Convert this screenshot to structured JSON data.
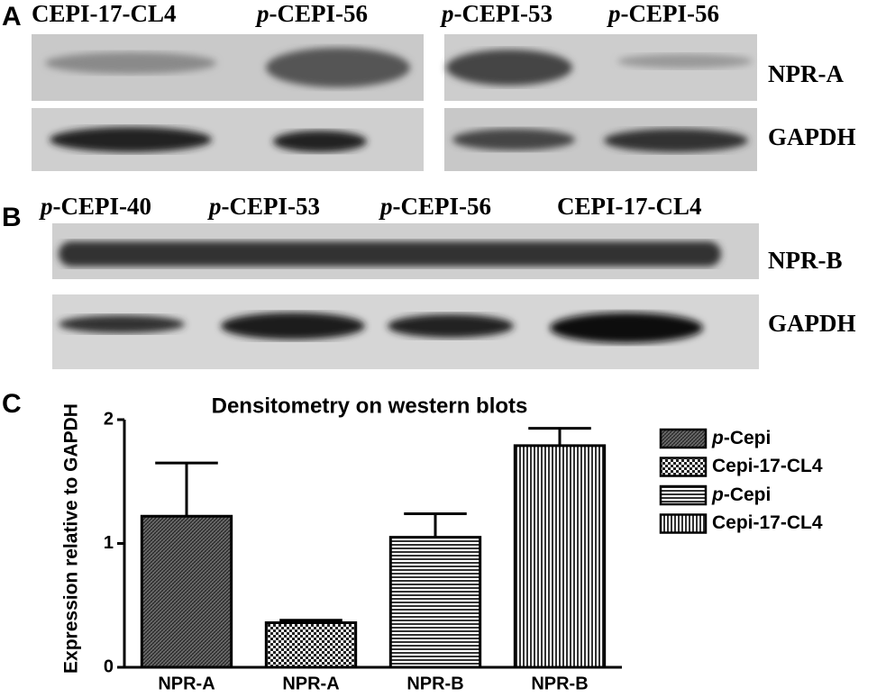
{
  "panel_labels": [
    "A",
    "B",
    "C"
  ],
  "panel_a": {
    "lanes": [
      "CEPI-17-CL4",
      "p-CEPI-56",
      "p-CEPI-53",
      "p-CEPI-56"
    ],
    "rows": [
      "NPR-A",
      "GAPDH"
    ]
  },
  "panel_b": {
    "lanes": [
      "p-CEPI-40",
      "p-CEPI-53",
      "p-CEPI-56",
      "CEPI-17-CL4"
    ],
    "rows": [
      "NPR-B",
      "GAPDH"
    ]
  },
  "chart_data": {
    "type": "bar",
    "title": "Densitometry on western blots",
    "y_label": "Expression relative to GAPDH",
    "categories": [
      "NPR-A",
      "NPR-A",
      "NPR-B",
      "NPR-B"
    ],
    "values": [
      1.22,
      0.36,
      1.05,
      1.79
    ],
    "errors": [
      0.43,
      0.02,
      0.19,
      0.14
    ],
    "legend": [
      "p-Cepi",
      "Cepi-17-CL4",
      "p-Cepi",
      "Cepi-17-CL4"
    ],
    "patterns": [
      "dense-hatch",
      "checker",
      "horizontal",
      "vertical"
    ],
    "ylim": [
      0,
      2
    ],
    "yticks": [
      0,
      1,
      2
    ]
  }
}
